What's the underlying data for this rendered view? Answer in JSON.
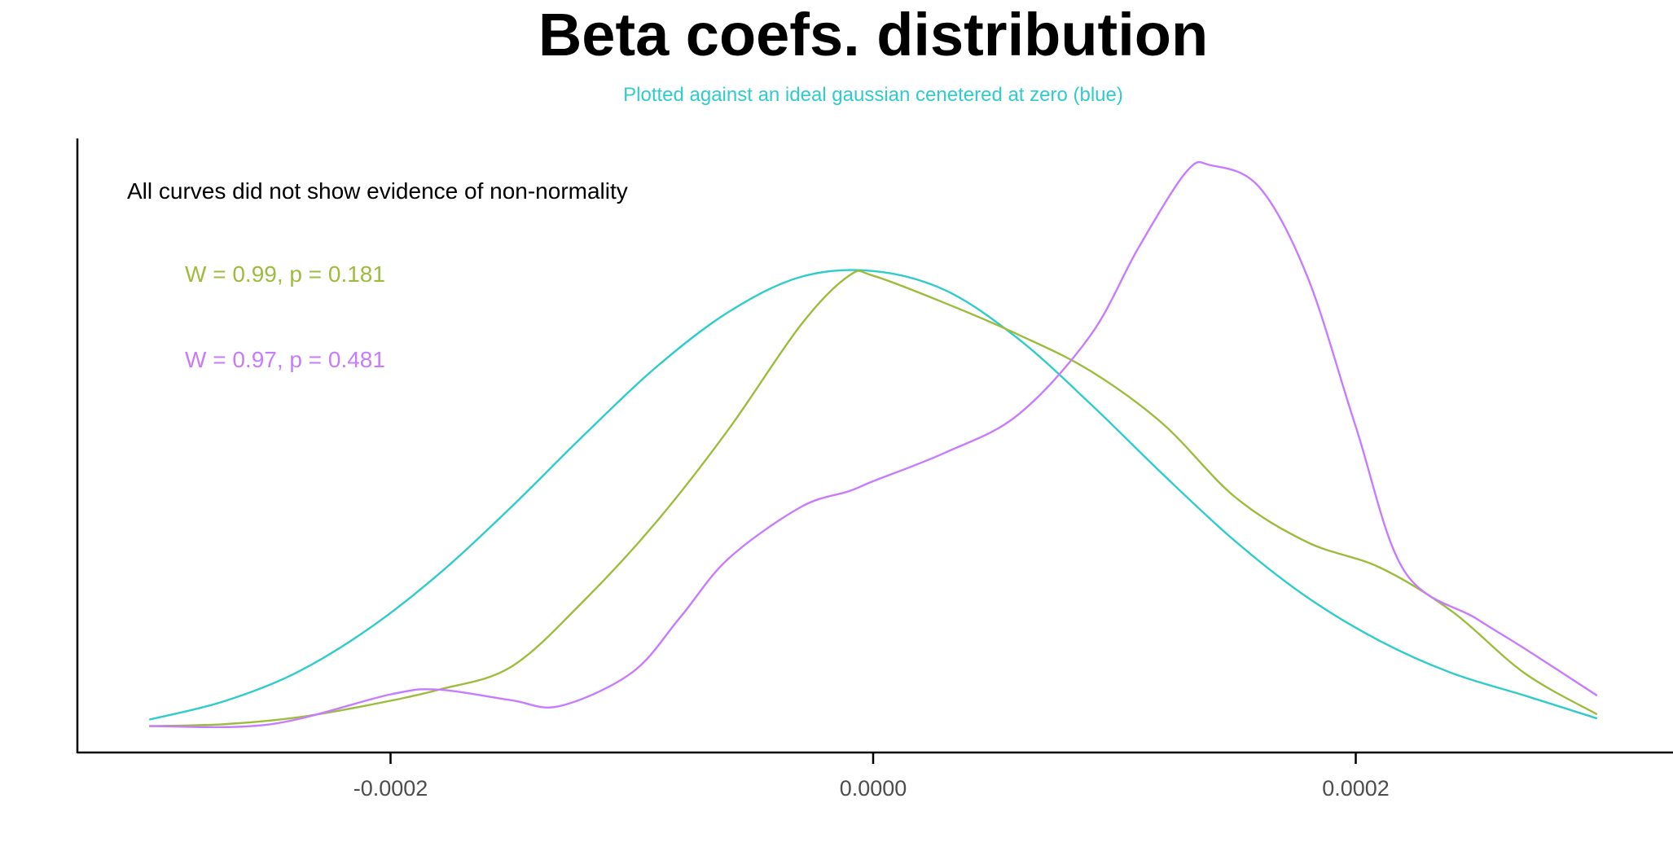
{
  "chart_data": {
    "type": "line",
    "title": "Beta coefs. distribution",
    "subtitle": "Plotted against an ideal gaussian cenetered at zero (blue)",
    "xlabel": "",
    "ylabel": "",
    "x_ticks": [
      -0.0002,
      0.0,
      0.0002
    ],
    "x_tick_labels": [
      "-0.0002",
      "0.0000",
      "0.0002"
    ],
    "xlim": [
      -0.00033,
      0.00033
    ],
    "ylim": [
      0,
      1.0
    ],
    "grid": false,
    "legend": "none",
    "annotations": [
      {
        "key": "note",
        "text": "All curves did not show evidence of non-normality",
        "color": "#000000"
      },
      {
        "key": "green",
        "text": "W = 0.99, p = 0.181",
        "color": "#9DBC3E"
      },
      {
        "key": "purple",
        "text": "W = 0.97, p = 0.481",
        "color": "#C77CFF"
      }
    ],
    "series": [
      {
        "color": "#2FCCCB",
        "x": [
          -0.0003,
          -0.00027,
          -0.00024,
          -0.00021,
          -0.00018,
          -0.00015,
          -0.00012,
          -9e-05,
          -6e-05,
          -3e-05,
          0.0,
          3e-05,
          6e-05,
          9e-05,
          0.00012,
          0.00015,
          0.00018,
          0.00021,
          0.00024,
          0.00027,
          0.0003
        ],
        "y": [
          0.056,
          0.086,
          0.134,
          0.208,
          0.304,
          0.418,
          0.54,
          0.656,
          0.75,
          0.81,
          0.82,
          0.787,
          0.705,
          0.594,
          0.474,
          0.36,
          0.264,
          0.19,
          0.135,
          0.097,
          0.058
        ]
      },
      {
        "color": "#9DBC3E",
        "x": [
          -0.0003,
          -0.00027,
          -0.00024,
          -0.00021,
          -0.00018,
          -0.00015,
          -0.00012,
          -9e-05,
          -6e-05,
          -3e-05,
          -1e-05,
          0.0,
          3e-05,
          6e-05,
          9e-05,
          0.00012,
          0.00015,
          0.00018,
          0.00021,
          0.00024,
          0.00027,
          0.0003
        ],
        "y": [
          0.045,
          0.048,
          0.059,
          0.08,
          0.107,
          0.146,
          0.258,
          0.392,
          0.55,
          0.728,
          0.812,
          0.812,
          0.765,
          0.712,
          0.65,
          0.56,
          0.435,
          0.358,
          0.315,
          0.24,
          0.135,
          0.065
        ]
      },
      {
        "color": "#C77CFF",
        "x": [
          -0.0003,
          -0.00025,
          -0.0002,
          -0.00018,
          -0.00015,
          -0.00013,
          -0.0001,
          -8e-05,
          -6e-05,
          -3e-05,
          -1e-05,
          0.0,
          3e-05,
          6e-05,
          9e-05,
          0.00011,
          0.00013,
          0.00014,
          0.00016,
          0.00018,
          0.0002,
          0.00022,
          0.00025,
          0.00027,
          0.0003
        ],
        "y": [
          0.045,
          0.048,
          0.099,
          0.107,
          0.089,
          0.079,
          0.136,
          0.23,
          0.33,
          0.418,
          0.445,
          0.462,
          0.511,
          0.575,
          0.71,
          0.86,
          0.99,
          1.0,
          0.963,
          0.81,
          0.555,
          0.31,
          0.228,
          0.177,
          0.097
        ]
      }
    ]
  }
}
